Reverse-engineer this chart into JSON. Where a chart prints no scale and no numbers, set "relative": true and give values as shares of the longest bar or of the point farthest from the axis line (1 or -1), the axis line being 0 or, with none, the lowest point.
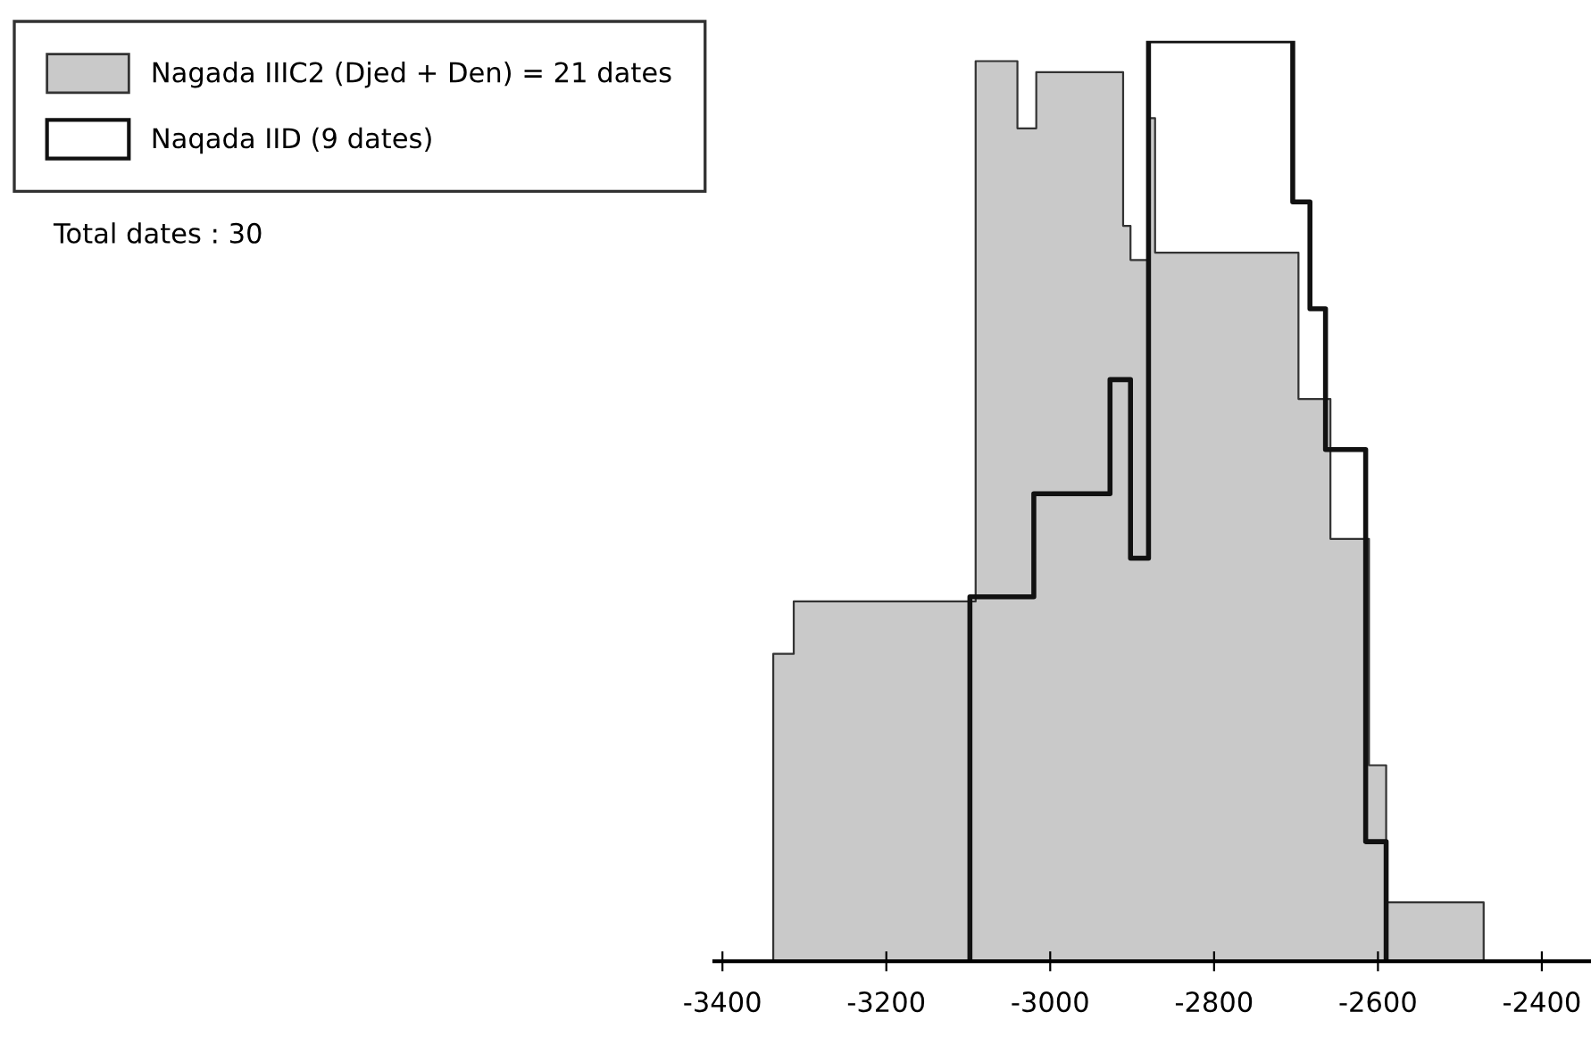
{
  "chart_data": {
    "type": "step",
    "xlim": [
      -3410,
      -2340
    ],
    "xticks": [
      -3400,
      -3200,
      -3000,
      -2800,
      -2600,
      -2400
    ],
    "relative": true,
    "legend": "top left",
    "grid": false,
    "tick_labels": "x",
    "annotations": [
      "Total dates : 30"
    ],
    "series": [
      {
        "name": "Nagada IIIC2 (Djed + Den) = 21 dates",
        "type": "area",
        "color": "#c9c9c9",
        "x": [
          -3338,
          -3313,
          -3091,
          -3040,
          -3017,
          -2911,
          -2902,
          -2880,
          -2872,
          -2697,
          -2658,
          -2611,
          -2590,
          -2471
        ],
        "values": [
          0.334,
          0.391,
          0.978,
          0.905,
          0.966,
          0.799,
          0.762,
          0.916,
          0.77,
          0.611,
          0.459,
          0.213,
          0.064,
          0
        ]
      },
      {
        "name": "Naqada IID (9 dates)",
        "color": "#111111",
        "x": [
          -3098,
          -3098,
          -3020,
          -2927,
          -2902,
          -2880,
          -2704,
          -2683,
          -2664,
          -2615,
          -2590
        ],
        "values": [
          0,
          0.396,
          0.508,
          0.632,
          0.438,
          1,
          0.825,
          0.709,
          0.556,
          0.13,
          0
        ]
      }
    ]
  }
}
